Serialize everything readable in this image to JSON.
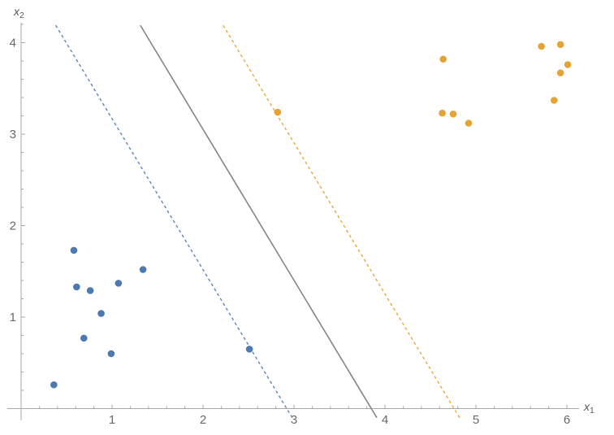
{
  "figure": {
    "background": "#ffffff"
  },
  "chart_data": {
    "type": "scatter",
    "title": "",
    "xlabel": {
      "base": "x",
      "sub": "1"
    },
    "ylabel": {
      "base": "x",
      "sub": "2"
    },
    "xlim": [
      -0.15,
      6.15
    ],
    "ylim": [
      -0.24,
      4.22
    ],
    "x_ticks": [
      1,
      2,
      3,
      4,
      5,
      6
    ],
    "y_ticks": [
      1,
      2,
      3,
      4
    ],
    "minor_tick_step": 0.2,
    "grid": false,
    "legend": "none",
    "axis_color": "#a8a8a8",
    "tick_label_color": "#686868",
    "series": [
      {
        "name": "class-blue",
        "marker": "circle",
        "color": "#4d78b2",
        "points": [
          [
            0.58,
            1.73
          ],
          [
            1.34,
            1.52
          ],
          [
            0.61,
            1.33
          ],
          [
            0.76,
            1.29
          ],
          [
            1.07,
            1.37
          ],
          [
            0.88,
            1.04
          ],
          [
            0.69,
            0.77
          ],
          [
            0.99,
            0.6
          ],
          [
            0.36,
            0.26
          ],
          [
            2.51,
            0.65
          ]
        ]
      },
      {
        "name": "class-orange",
        "marker": "circle",
        "color": "#e6a233",
        "points": [
          [
            4.64,
            3.82
          ],
          [
            4.63,
            3.23
          ],
          [
            4.75,
            3.22
          ],
          [
            4.92,
            3.12
          ],
          [
            5.72,
            3.96
          ],
          [
            5.93,
            3.98
          ],
          [
            6.01,
            3.76
          ],
          [
            5.93,
            3.67
          ],
          [
            5.86,
            3.37
          ],
          [
            2.82,
            3.24
          ]
        ]
      }
    ],
    "lines": [
      {
        "name": "margin-blue",
        "style": "dashed",
        "color": "#5e85bb",
        "slope": -1.65,
        "x_intercept": 2.92
      },
      {
        "name": "decision-boundary",
        "style": "solid",
        "color": "#848484",
        "slope": -1.65,
        "x_intercept": 3.85
      },
      {
        "name": "margin-orange",
        "style": "dashed",
        "color": "#e8a93e",
        "slope": -1.65,
        "x_intercept": 4.76
      }
    ],
    "line_clip_y": [
      -0.1,
      4.19
    ]
  }
}
